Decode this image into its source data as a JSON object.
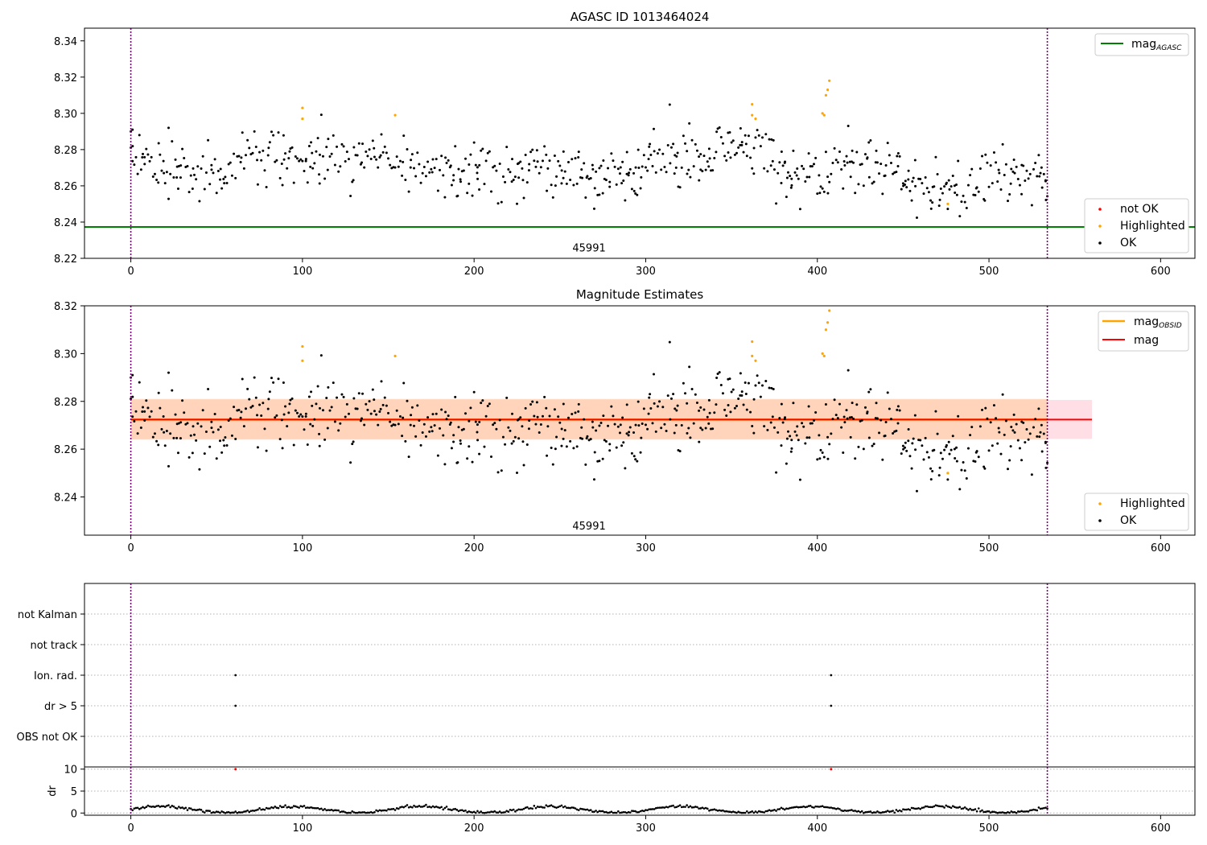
{
  "chart_data": [
    {
      "type": "scatter",
      "title": "AGASC ID 1013464024",
      "xlim": [
        -27,
        620
      ],
      "ylim": [
        8.22,
        8.347
      ],
      "xticks": [
        0,
        100,
        200,
        300,
        400,
        500,
        600
      ],
      "yticks": [
        "8.22",
        "8.24",
        "8.26",
        "8.28",
        "8.30",
        "8.32",
        "8.34"
      ],
      "obsid_annotation": {
        "text": "45991",
        "x": 267,
        "y": 8.226
      },
      "vlines": [
        0,
        534
      ],
      "hlines": [
        {
          "name": "mag_AGASC",
          "y": 8.2373,
          "color": "#008000"
        }
      ],
      "legend_upper": [
        {
          "label": "mag",
          "subscript": "AGASC",
          "color": "#008000",
          "marker": "line"
        }
      ],
      "legend_lower": [
        {
          "label": "not OK",
          "color": "#ff0000",
          "marker": "dot"
        },
        {
          "label": "Highlighted",
          "color": "#ffa500",
          "marker": "dot"
        },
        {
          "label": "OK",
          "color": "#000000",
          "marker": "dot"
        }
      ],
      "series": [
        {
          "name": "OK",
          "color": "#000000",
          "note": "534 points, x 0..534, y mostly 8.256..8.292; generated in script from seed"
        },
        {
          "name": "Highlighted",
          "color": "#ffa500",
          "points": [
            [
              100,
              8.297
            ],
            [
              100,
              8.303
            ],
            [
              154,
              8.299
            ],
            [
              362,
              8.299
            ],
            [
              362,
              8.305
            ],
            [
              364,
              8.297
            ],
            [
              403,
              8.3
            ],
            [
              404,
              8.299
            ],
            [
              405,
              8.31
            ],
            [
              406,
              8.313
            ],
            [
              407,
              8.318
            ],
            [
              476,
              8.25
            ]
          ]
        }
      ]
    },
    {
      "type": "scatter",
      "title": "Magnitude Estimates",
      "xlim": [
        -27,
        620
      ],
      "ylim": [
        8.224,
        8.32
      ],
      "xticks": [
        0,
        100,
        200,
        300,
        400,
        500,
        600
      ],
      "yticks": [
        "8.24",
        "8.26",
        "8.28",
        "8.30",
        "8.32"
      ],
      "obsid_annotation": {
        "text": "45991",
        "x": 267,
        "y": 8.228
      },
      "vlines": [
        0,
        534
      ],
      "mag_line": {
        "y": 8.2724,
        "color": "#ff0000",
        "xrange": [
          0,
          560
        ]
      },
      "mag_obsid_line": {
        "y": 8.2724,
        "color": "#ffa500",
        "xrange": [
          0,
          534
        ]
      },
      "band_mag": {
        "y": [
          8.2643,
          8.2806
        ],
        "color": "#ffc0cb",
        "xrange": [
          0,
          560
        ]
      },
      "band_obsid": {
        "y": [
          8.264,
          8.281
        ],
        "color": "#ffd1b0",
        "xrange": [
          0,
          534
        ]
      },
      "legend_upper": [
        {
          "label": "mag",
          "subscript": "OBSID",
          "color": "#ffa500",
          "marker": "line"
        },
        {
          "label": "mag",
          "subscript": "",
          "color": "#ff0000",
          "marker": "line"
        }
      ],
      "legend_lower": [
        {
          "label": "Highlighted",
          "color": "#ffa500",
          "marker": "dot"
        },
        {
          "label": "OK",
          "color": "#000000",
          "marker": "dot"
        }
      ]
    },
    {
      "type": "scatter",
      "title": "",
      "xlim": [
        -27,
        620
      ],
      "categories": [
        "not Kalman",
        "not track",
        "Ion. rad.",
        "dr > 5",
        "OBS not OK"
      ],
      "vlines": [
        0,
        534
      ],
      "flag_points": [
        {
          "category": "Ion. rad.",
          "x": [
            61,
            408
          ]
        },
        {
          "category": "dr > 5",
          "x": [
            61,
            408
          ]
        }
      ]
    },
    {
      "type": "scatter",
      "title": "",
      "ylabel": "dr",
      "xlim": [
        -27,
        620
      ],
      "ylim": [
        -0.5,
        10.5
      ],
      "xticks": [
        0,
        100,
        200,
        300,
        400,
        500,
        600
      ],
      "yticks": [
        "0",
        "5",
        "10"
      ],
      "vlines": [
        0,
        534
      ],
      "outliers": [
        [
          61,
          10
        ],
        [
          408,
          10
        ]
      ],
      "series_note": "dr values 0..2 for x 0..534, generated in script"
    }
  ]
}
